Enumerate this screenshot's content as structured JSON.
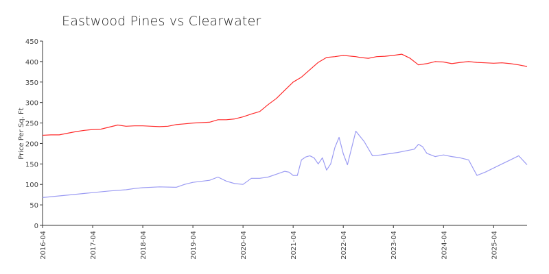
{
  "chart_data": {
    "type": "line",
    "title": "Eastwood Pines vs Clearwater",
    "xlabel": "",
    "ylabel": "Price Per Sq. Ft",
    "ylim": [
      0,
      450
    ],
    "yticks": [
      0,
      50,
      100,
      150,
      200,
      250,
      300,
      350,
      400,
      450
    ],
    "xlim": [
      "2016-04",
      "2025-12"
    ],
    "xticks": [
      "2016-04",
      "2017-04",
      "2018-04",
      "2019-04",
      "2020-04",
      "2021-04",
      "2022-04",
      "2023-04",
      "2024-04",
      "2025-04"
    ],
    "grid": false,
    "legend": "none",
    "series": [
      {
        "color": "#ff2a2a",
        "x": [
          "2016-04",
          "2016-06",
          "2016-08",
          "2016-10",
          "2016-12",
          "2017-02",
          "2017-04",
          "2017-06",
          "2017-08",
          "2017-10",
          "2017-12",
          "2018-02",
          "2018-04",
          "2018-06",
          "2018-08",
          "2018-10",
          "2018-12",
          "2019-02",
          "2019-04",
          "2019-06",
          "2019-08",
          "2019-10",
          "2019-12",
          "2020-02",
          "2020-04",
          "2020-06",
          "2020-08",
          "2020-10",
          "2020-12",
          "2021-02",
          "2021-04",
          "2021-06",
          "2021-08",
          "2021-10",
          "2021-12",
          "2022-02",
          "2022-04",
          "2022-06",
          "2022-07",
          "2022-08",
          "2022-09",
          "2022-10",
          "2022-12",
          "2023-02",
          "2023-04",
          "2023-06",
          "2023-08",
          "2023-10",
          "2023-12",
          "2024-02",
          "2024-04",
          "2024-06",
          "2024-08",
          "2024-10",
          "2024-12",
          "2025-02",
          "2025-04",
          "2025-06",
          "2025-08",
          "2025-10",
          "2025-12"
        ],
        "y": [
          220,
          221,
          221,
          225,
          229,
          232,
          234,
          235,
          240,
          245,
          242,
          243,
          243,
          242,
          241,
          242,
          246,
          248,
          250,
          251,
          252,
          258,
          258,
          260,
          265,
          272,
          278,
          295,
          310,
          330,
          350,
          362,
          380,
          398,
          410,
          412,
          415,
          413,
          412,
          410,
          409,
          408,
          412,
          413,
          415,
          418,
          408,
          392,
          395,
          400,
          399,
          395,
          398,
          400,
          398,
          397,
          396,
          397,
          395,
          392,
          388
        ]
      },
      {
        "color": "#9b9bf3",
        "x": [
          "2016-04",
          "2016-08",
          "2016-12",
          "2017-04",
          "2017-08",
          "2017-12",
          "2018-02",
          "2018-04",
          "2018-08",
          "2018-12",
          "2019-02",
          "2019-04",
          "2019-08",
          "2019-10",
          "2019-12",
          "2020-02",
          "2020-04",
          "2020-06",
          "2020-08",
          "2020-10",
          "2020-12",
          "2021-02",
          "2021-03",
          "2021-04",
          "2021-05",
          "2021-06",
          "2021-07",
          "2021-08",
          "2021-09",
          "2021-10",
          "2021-11",
          "2021-12",
          "2022-01",
          "2022-02",
          "2022-03",
          "2022-04",
          "2022-05",
          "2022-07",
          "2022-09",
          "2022-11",
          "2023-01",
          "2023-03",
          "2023-05",
          "2023-07",
          "2023-09",
          "2023-10",
          "2023-11",
          "2023-12",
          "2024-02",
          "2024-04",
          "2024-06",
          "2024-08",
          "2024-10",
          "2024-12",
          "2025-02",
          "2025-04",
          "2025-06",
          "2025-08",
          "2025-10",
          "2025-12"
        ],
        "y": [
          68,
          72,
          76,
          80,
          84,
          87,
          90,
          92,
          94,
          93,
          100,
          105,
          110,
          118,
          108,
          102,
          100,
          115,
          115,
          118,
          125,
          132,
          130,
          122,
          122,
          160,
          167,
          170,
          165,
          150,
          165,
          135,
          150,
          190,
          215,
          175,
          148,
          230,
          205,
          170,
          172,
          175,
          178,
          182,
          186,
          198,
          192,
          176,
          168,
          172,
          168,
          165,
          160,
          122,
          130,
          140,
          150,
          160,
          170,
          148
        ]
      }
    ]
  }
}
